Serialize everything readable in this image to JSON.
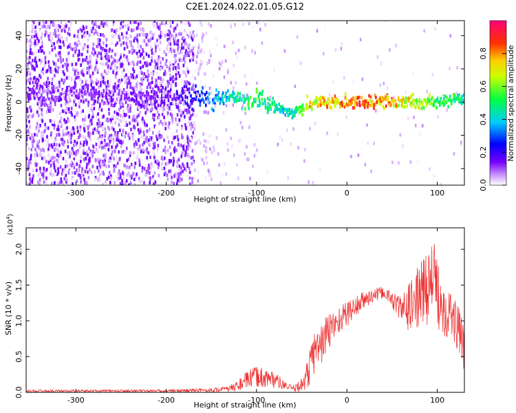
{
  "title": "C2E1.2024.022.01.05.G12",
  "colors": {
    "snr_line": "#ee3333",
    "axis": "#000000"
  },
  "chart_data": [
    {
      "type": "heatmap",
      "xlabel": "Height of straight line (km)",
      "ylabel": "Frequency (Hz)",
      "xlim": [
        -355,
        130
      ],
      "ylim": [
        -50,
        49
      ],
      "xticks": [
        -300,
        -200,
        -100,
        0,
        100
      ],
      "xtick_labels": [
        "-300",
        "-200",
        "-100",
        "0",
        "100"
      ],
      "yticks": [
        -40,
        -20,
        0,
        20,
        40
      ],
      "ytick_labels": [
        "-40",
        "-20",
        "0",
        "20",
        "40"
      ],
      "colorbar": {
        "label": "Normalized spectral amplitude",
        "range": [
          0,
          1
        ],
        "ticks": [
          0.0,
          0.2,
          0.4,
          0.6,
          0.8
        ],
        "tick_labels": [
          "0.0",
          "0.2",
          "0.4",
          "0.6",
          "0.8"
        ],
        "colormap": "rainbow"
      },
      "ridge": {
        "x": [
          -355,
          -300,
          -250,
          -200,
          -160,
          -120,
          -100,
          -80,
          -70,
          -60,
          -50,
          -40,
          -20,
          0,
          20,
          40,
          60,
          80,
          100,
          130
        ],
        "frequency": [
          5,
          5,
          4,
          3,
          3,
          2,
          1,
          -2,
          -6,
          -7,
          -4,
          -1,
          0,
          0,
          0,
          0,
          0,
          0,
          1,
          2
        ],
        "amplitude": [
          0.14,
          0.14,
          0.14,
          0.15,
          0.3,
          0.5,
          0.55,
          0.5,
          0.45,
          0.45,
          0.6,
          0.75,
          0.82,
          0.85,
          0.88,
          0.85,
          0.78,
          0.68,
          0.6,
          0.5
        ]
      }
    },
    {
      "type": "line",
      "xlabel": "Height of straight line (km)",
      "ylabel": "SNR (10 * v/v)",
      "yscale_label": "(x10",
      "yscale_exponent": "4",
      "yscale_close": ")",
      "xlim": [
        -355,
        130
      ],
      "ylim": [
        0,
        2.3
      ],
      "xticks": [
        -300,
        -200,
        -100,
        0,
        100
      ],
      "xtick_labels": [
        "-300",
        "-200",
        "-100",
        "0",
        "100"
      ],
      "yticks": [
        0.0,
        0.5,
        1.0,
        1.5,
        2.0
      ],
      "ytick_labels": [
        "0.0",
        "0.5",
        "1.0",
        "1.5",
        "2.0"
      ],
      "series": [
        {
          "x": [
            -355,
            -300,
            -250,
            -200,
            -150,
            -130,
            -120,
            -110,
            -100,
            -90,
            -80,
            -70,
            -60,
            -50,
            -42,
            -38,
            -35,
            -30,
            -25,
            -20,
            -10,
            0,
            10,
            20,
            30,
            40,
            50,
            60,
            70,
            80,
            90,
            95,
            100,
            110,
            120,
            130
          ],
          "y": [
            0.02,
            0.02,
            0.02,
            0.02,
            0.03,
            0.05,
            0.1,
            0.18,
            0.22,
            0.2,
            0.18,
            0.1,
            0.05,
            0.1,
            0.3,
            0.5,
            0.6,
            0.65,
            0.75,
            0.85,
            1.0,
            1.1,
            1.2,
            1.3,
            1.35,
            1.4,
            1.3,
            1.15,
            1.2,
            1.35,
            1.5,
            1.6,
            1.4,
            1.15,
            1.0,
            0.6
          ],
          "spread": [
            0.02,
            0.02,
            0.02,
            0.02,
            0.03,
            0.04,
            0.08,
            0.12,
            0.15,
            0.14,
            0.12,
            0.06,
            0.04,
            0.1,
            0.25,
            0.3,
            0.3,
            0.3,
            0.3,
            0.28,
            0.2,
            0.18,
            0.16,
            0.12,
            0.1,
            0.08,
            0.12,
            0.2,
            0.35,
            0.45,
            0.55,
            0.6,
            0.5,
            0.4,
            0.35,
            0.3
          ]
        }
      ]
    }
  ]
}
